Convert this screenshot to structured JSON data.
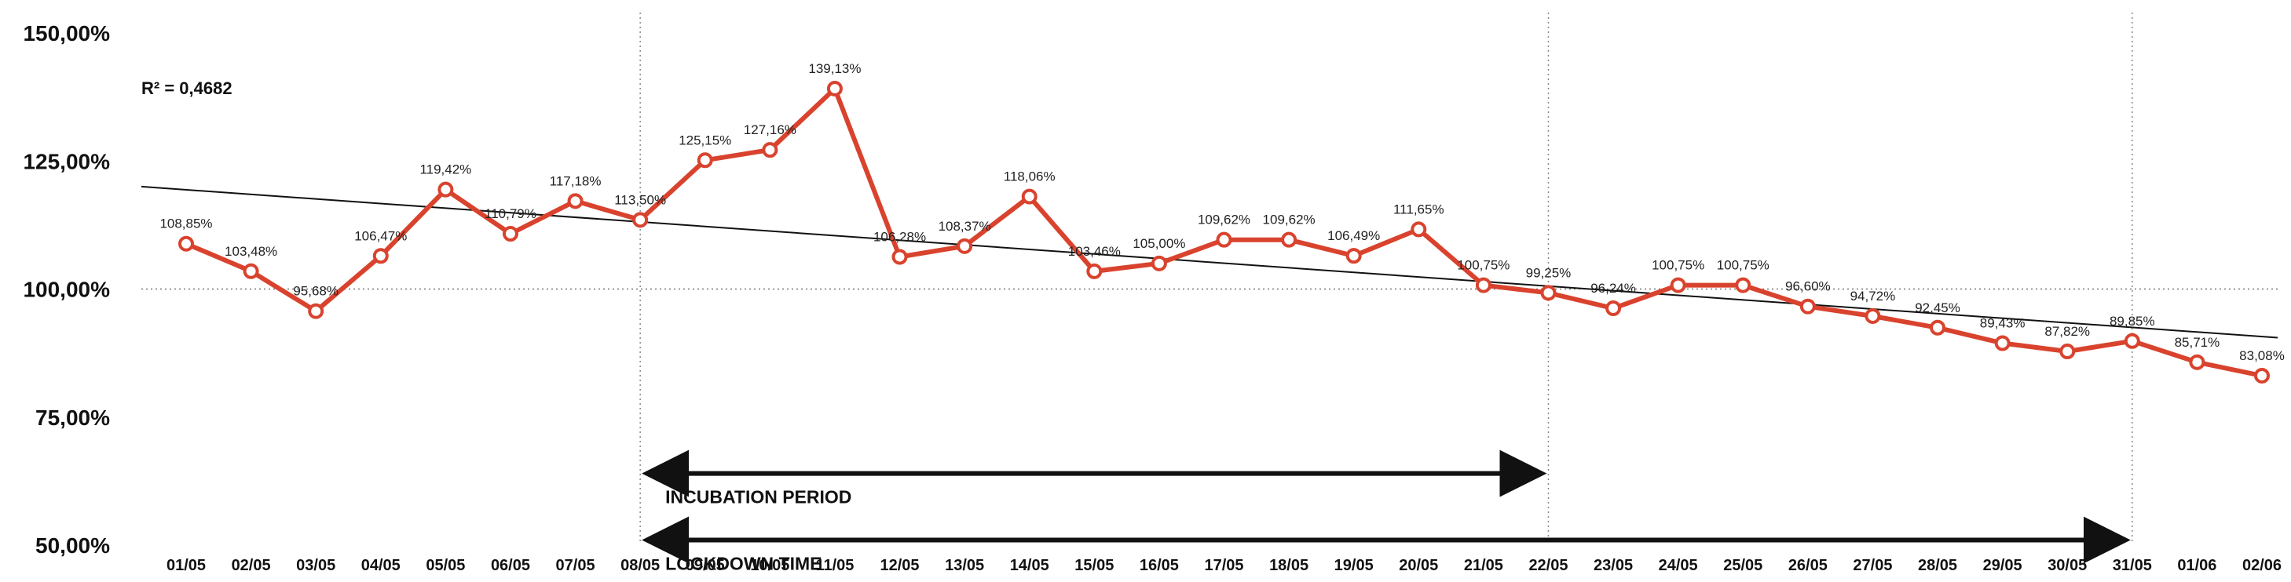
{
  "chart_data": {
    "type": "line",
    "categories": [
      "01/05",
      "02/05",
      "03/05",
      "04/05",
      "05/05",
      "06/05",
      "07/05",
      "08/05",
      "09/05",
      "10/05",
      "11/05",
      "12/05",
      "13/05",
      "14/05",
      "15/05",
      "16/05",
      "17/05",
      "18/05",
      "19/05",
      "20/05",
      "21/05",
      "22/05",
      "23/05",
      "24/05",
      "25/05",
      "26/05",
      "27/05",
      "28/05",
      "29/05",
      "30/05",
      "31/05",
      "01/06",
      "02/06"
    ],
    "series": [
      {
        "values": [
          108.85,
          103.48,
          95.68,
          106.47,
          119.42,
          110.79,
          117.18,
          113.5,
          125.15,
          127.16,
          139.13,
          106.28,
          108.37,
          118.06,
          103.46,
          105.0,
          109.62,
          109.62,
          106.49,
          111.65,
          100.75,
          99.25,
          96.24,
          100.75,
          100.75,
          96.6,
          94.72,
          92.45,
          89.43,
          87.82,
          89.85,
          85.71,
          83.08
        ],
        "labels": [
          "108,85%",
          "103,48%",
          "95,68%",
          "106,47%",
          "119,42%",
          "110,79%",
          "117,18%",
          "113,50%",
          "125,15%",
          "127,16%",
          "139,13%",
          "106,28%",
          "108,37%",
          "118,06%",
          "103,46%",
          "105,00%",
          "109,62%",
          "109,62%",
          "106,49%",
          "111,65%",
          "100,75%",
          "99,25%",
          "96,24%",
          "100,75%",
          "100,75%",
          "96,60%",
          "94,72%",
          "92,45%",
          "89,43%",
          "87,82%",
          "89,85%",
          "85,71%",
          "83,08%"
        ],
        "color": "#d9432e"
      }
    ],
    "trendline": {
      "r2_label": "R² = 0,4682",
      "start": 120.0,
      "end": 90.5,
      "color": "#111111"
    },
    "ylim": [
      50,
      150
    ],
    "yticks": [
      50,
      75,
      100,
      125,
      150
    ],
    "ytick_labels": [
      "50,00%",
      "75,00%",
      "100,00%",
      "125,00%",
      "150,00%"
    ],
    "reference_line": 100,
    "vlines": [
      "08/05",
      "22/05",
      "31/05"
    ],
    "annotations": [
      {
        "text": "INCUBATION PERIOD",
        "from": "08/05",
        "to": "22/05",
        "level": 64.0
      },
      {
        "text": "LOCKDOWN TIME",
        "from": "08/05",
        "to": "31/05",
        "level": 51.0
      }
    ],
    "title": "",
    "xlabel": "",
    "ylabel": "",
    "grid": false
  }
}
